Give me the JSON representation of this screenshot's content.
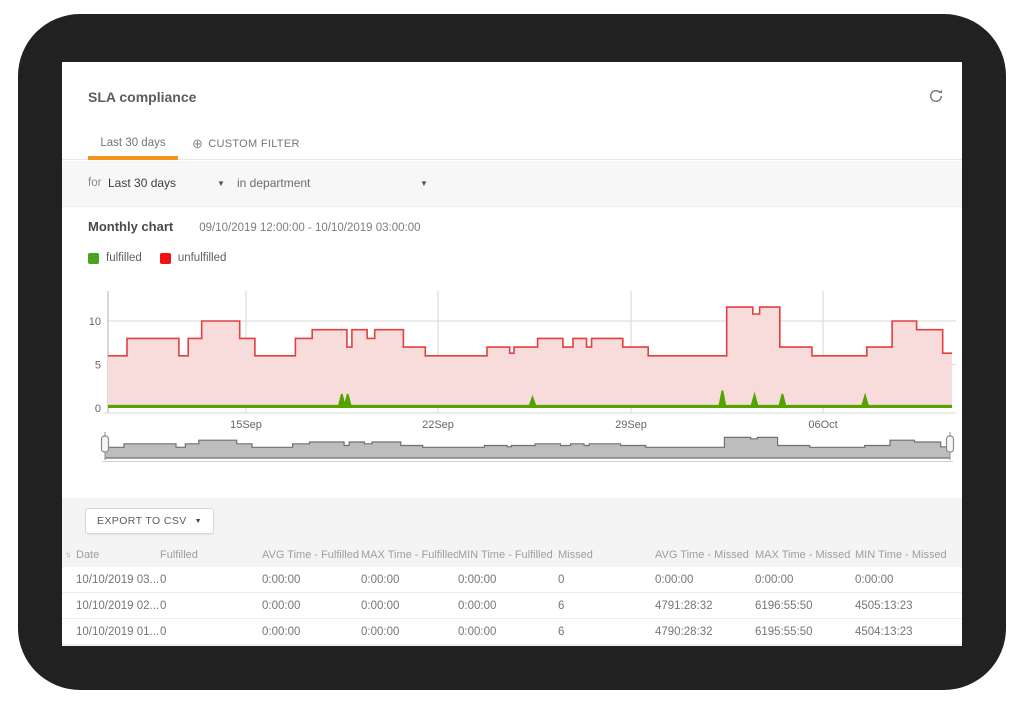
{
  "app": {
    "title": "SLA compliance"
  },
  "icons": {
    "caret_down": "▼",
    "sort": "↑↓",
    "circled_plus": "⊕"
  },
  "tabs": {
    "active": {
      "label": "Last 30 days"
    },
    "custom": {
      "label": "CUSTOM FILTER"
    },
    "accent_color": "#f5921e"
  },
  "filter_bar": {
    "for_label": "for",
    "period_value": "Last 30 days",
    "department_value": "in department"
  },
  "chart_header": {
    "title": "Monthly chart",
    "range": "09/10/2019 12:00:00 - 10/10/2019 03:00:00"
  },
  "legend": {
    "items": [
      {
        "label": "fulfilled",
        "color": "#46a41e"
      },
      {
        "label": "unfulfilled",
        "color": "#ee1315"
      }
    ]
  },
  "chart_data": {
    "type": "area",
    "title": "Monthly chart",
    "range": "09/10/2019 12:00:00 - 10/10/2019 03:00:00",
    "grid": true,
    "legend_position": "top-left",
    "y_ticks": [
      0,
      5,
      10
    ],
    "ylim": [
      0,
      13.5
    ],
    "x_ticks": [
      {
        "label": "15Sep",
        "f": 0.1635
      },
      {
        "label": "22Sep",
        "f": 0.391
      },
      {
        "label": "29Sep",
        "f": 0.6197
      },
      {
        "label": "06Oct",
        "f": 0.8472
      }
    ],
    "series": [
      {
        "name": "unfulfilled",
        "type": "step-area",
        "color": "#e2403f",
        "fill": "#f8dcdc",
        "points": [
          [
            0,
            6
          ],
          [
            0.0225,
            8
          ],
          [
            0.084,
            6
          ],
          [
            0.095,
            8
          ],
          [
            0.111,
            10
          ],
          [
            0.156,
            8
          ],
          [
            0.174,
            6
          ],
          [
            0.222,
            8
          ],
          [
            0.242,
            9
          ],
          [
            0.283,
            7
          ],
          [
            0.289,
            9
          ],
          [
            0.307,
            8
          ],
          [
            0.316,
            9
          ],
          [
            0.35,
            7
          ],
          [
            0.376,
            6
          ],
          [
            0.449,
            7
          ],
          [
            0.476,
            6.3
          ],
          [
            0.481,
            7
          ],
          [
            0.509,
            8
          ],
          [
            0.539,
            7
          ],
          [
            0.551,
            8
          ],
          [
            0.567,
            7
          ],
          [
            0.573,
            8
          ],
          [
            0.61,
            7
          ],
          [
            0.64,
            6
          ],
          [
            0.733,
            11.6
          ],
          [
            0.764,
            10.8
          ],
          [
            0.772,
            11.6
          ],
          [
            0.796,
            7
          ],
          [
            0.834,
            6
          ],
          [
            0.899,
            7
          ],
          [
            0.929,
            10
          ],
          [
            0.958,
            9
          ],
          [
            0.989,
            6.3
          ]
        ]
      },
      {
        "name": "fulfilled",
        "type": "baseline-spikes",
        "color": "#54a300",
        "baseline": 0.25,
        "spikes": [
          [
            0.277,
            1.6
          ],
          [
            0.284,
            1.6
          ],
          [
            0.503,
            1.2
          ],
          [
            0.728,
            2.0
          ],
          [
            0.766,
            1.5
          ],
          [
            0.799,
            1.6
          ],
          [
            0.897,
            1.4
          ]
        ]
      }
    ],
    "navigator": {
      "fill": "#bdbdbd",
      "stroke": "#707070",
      "handle_fill": "#f5f5f5",
      "handle_stroke": "#8a8a8a"
    }
  },
  "export": {
    "label": "EXPORT TO CSV"
  },
  "table": {
    "headers": [
      "Date",
      "Fulfilled",
      "AVG Time - Fulfilled",
      "MAX Time - Fulfilled",
      "MIN Time - Fulfilled",
      "Missed",
      "AVG Time - Missed",
      "MAX Time - Missed",
      "MIN Time - Missed"
    ],
    "rows": [
      [
        "10/10/2019 03...",
        "0",
        "0:00:00",
        "0:00:00",
        "0:00:00",
        "0",
        "0:00:00",
        "0:00:00",
        "0:00:00"
      ],
      [
        "10/10/2019 02...",
        "0",
        "0:00:00",
        "0:00:00",
        "0:00:00",
        "6",
        "4791:28:32",
        "6196:55:50",
        "4505:13:23"
      ],
      [
        "10/10/2019 01...",
        "0",
        "0:00:00",
        "0:00:00",
        "0:00:00",
        "6",
        "4790:28:32",
        "6195:55:50",
        "4504:13:23"
      ]
    ]
  }
}
